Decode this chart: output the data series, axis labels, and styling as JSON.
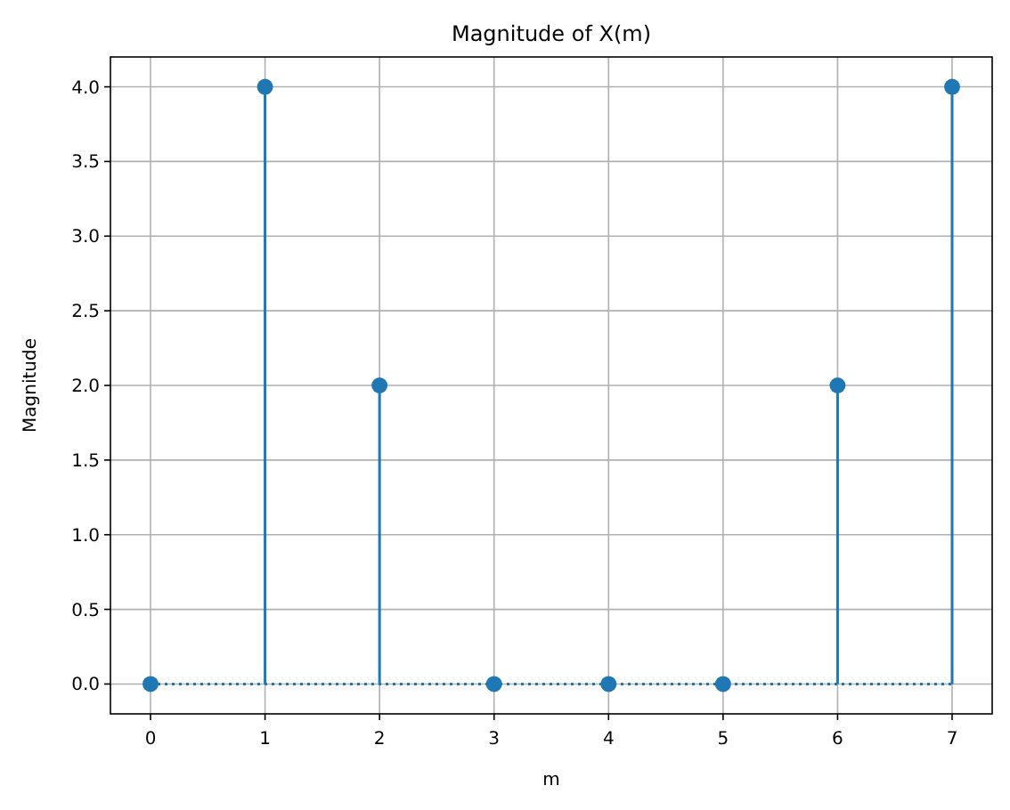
{
  "chart_data": {
    "type": "lollipop",
    "title": "Magnitude of X(m)",
    "xlabel": "m",
    "ylabel": "Magnitude",
    "x": [
      0,
      1,
      2,
      3,
      4,
      5,
      6,
      7
    ],
    "values": [
      0,
      4,
      2,
      0,
      0,
      0,
      2,
      4
    ],
    "color": "#1f77b4",
    "marker": "circle",
    "xlim": [
      -0.35,
      7.35
    ],
    "xticks": [
      0,
      1,
      2,
      3,
      4,
      5,
      6,
      7
    ],
    "ylim": [
      -0.2,
      4.2
    ],
    "yticks": [
      {
        "value": 0,
        "label": "0.0"
      },
      {
        "value": 0.5,
        "label": "0.5"
      },
      {
        "value": 1,
        "label": "1.0"
      },
      {
        "value": 1.5,
        "label": "1.5"
      },
      {
        "value": 2,
        "label": "2.0"
      },
      {
        "value": 2.5,
        "label": "2.5"
      },
      {
        "value": 3,
        "label": "3.0"
      },
      {
        "value": 3.5,
        "label": "3.5"
      },
      {
        "value": 4,
        "label": "4.0"
      }
    ],
    "grid": true,
    "ref_lines": [
      {
        "axis": "y",
        "value": 0,
        "color": "#1f77b4",
        "line_style": "dotted"
      }
    ]
  }
}
